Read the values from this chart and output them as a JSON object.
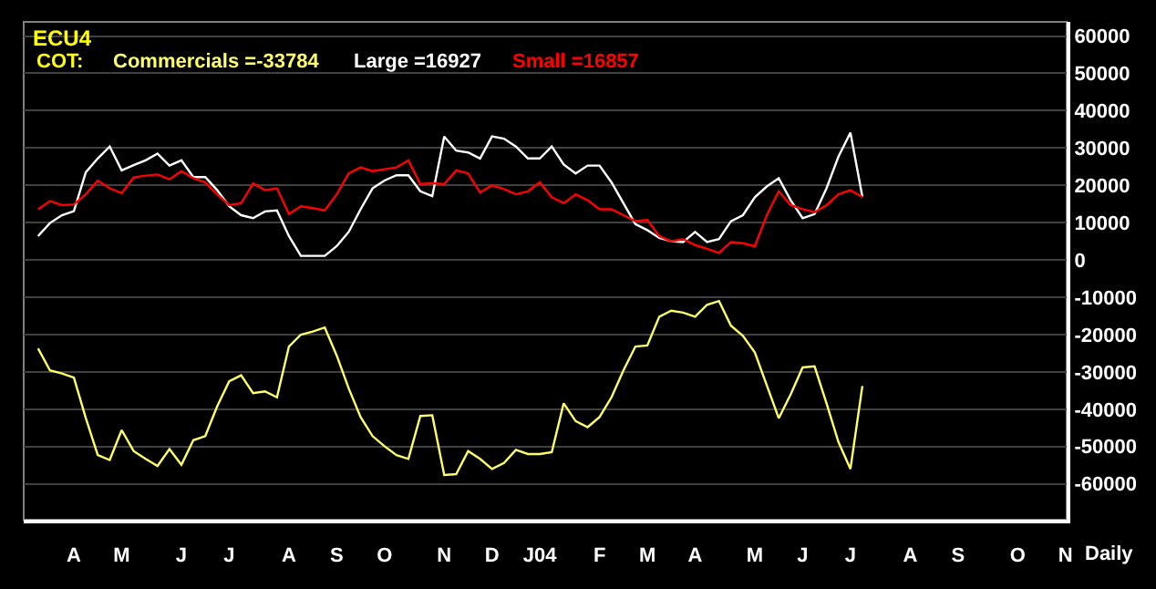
{
  "chart_data": {
    "type": "line",
    "title": "ECU4",
    "subtitle": "COT:",
    "categories": [
      null,
      null,
      null,
      "A",
      null,
      null,
      null,
      "M",
      null,
      null,
      null,
      null,
      "J",
      null,
      null,
      null,
      "J",
      null,
      null,
      null,
      null,
      "A",
      null,
      null,
      null,
      "S",
      null,
      null,
      null,
      "O",
      null,
      null,
      null,
      null,
      "N",
      null,
      null,
      null,
      "D",
      null,
      null,
      null,
      "J04",
      null,
      null,
      null,
      null,
      "F",
      null,
      null,
      null,
      "M",
      null,
      null,
      null,
      "A",
      null,
      null,
      null,
      null,
      "M",
      null,
      null,
      null,
      "J",
      null,
      null,
      null,
      "J",
      null,
      null,
      null,
      null,
      "A",
      null,
      null,
      null,
      "S",
      null,
      null,
      null,
      null,
      "O",
      null,
      null,
      null,
      "N"
    ],
    "series": [
      {
        "name": "Commercials =-33784",
        "color": "#ffff66",
        "values": [
          -23700,
          -29600,
          -30400,
          -31500,
          -42400,
          -52300,
          -53600,
          -45600,
          -51200,
          -53300,
          -55200,
          -50700,
          -54900,
          -48300,
          -47200,
          -39200,
          -32500,
          -30900,
          -35700,
          -35200,
          -36800,
          -23200,
          -20000,
          -19200,
          -18100,
          -25600,
          -34400,
          -42100,
          -47200,
          -49900,
          -52300,
          -53300,
          -41800,
          -41600,
          -57600,
          -57400,
          -51200,
          -53300,
          -56000,
          -54400,
          -50900,
          -52000,
          -52000,
          -51500,
          -38400,
          -43200,
          -44800,
          -42100,
          -36800,
          -29600,
          -23200,
          -22900,
          -15200,
          -13600,
          -14100,
          -15200,
          -12000,
          -11000,
          -17600,
          -20300,
          -24800,
          -33600,
          -42400,
          -36000,
          -28800,
          -28500,
          -38400,
          -48800,
          -56000,
          -33784,
          null,
          null,
          null,
          null,
          null,
          null,
          null,
          null,
          null,
          null,
          null,
          null,
          null,
          null,
          null,
          null,
          null
        ]
      },
      {
        "name": "Large =16927",
        "color": "#ffffff",
        "values": [
          6400,
          9900,
          12000,
          13100,
          23500,
          27200,
          30400,
          24000,
          25400,
          26700,
          28500,
          25300,
          26700,
          22200,
          22200,
          18700,
          14400,
          12000,
          11200,
          13000,
          13300,
          6400,
          1100,
          1100,
          1100,
          3700,
          7500,
          13600,
          19200,
          21300,
          22700,
          22700,
          18400,
          17100,
          33100,
          29300,
          28800,
          27200,
          33100,
          32500,
          30400,
          27200,
          27200,
          30400,
          25600,
          23200,
          25300,
          25300,
          20800,
          15200,
          9600,
          8000,
          5900,
          5000,
          4800,
          7500,
          4800,
          5600,
          10400,
          12000,
          16800,
          19700,
          21900,
          16000,
          11200,
          12300,
          19200,
          27700,
          34100,
          16927,
          null,
          null,
          null,
          null,
          null,
          null,
          null,
          null,
          null,
          null,
          null,
          null,
          null,
          null,
          null,
          null,
          null
        ]
      },
      {
        "name": "Small =16857",
        "color": "#ff0000",
        "values": [
          13600,
          15800,
          14700,
          14900,
          17600,
          21300,
          19200,
          17900,
          22100,
          22600,
          22900,
          21600,
          23800,
          21900,
          20800,
          17600,
          14700,
          15200,
          20500,
          18700,
          19200,
          12300,
          14400,
          13900,
          13300,
          17600,
          23200,
          24800,
          23800,
          24300,
          24800,
          26700,
          20300,
          20600,
          20300,
          24000,
          23200,
          18100,
          20000,
          19000,
          17600,
          18400,
          20800,
          16800,
          15200,
          17600,
          16000,
          13600,
          13600,
          12000,
          10400,
          10700,
          6400,
          5000,
          5600,
          4000,
          3000,
          1900,
          4800,
          4500,
          3700,
          12000,
          18400,
          14700,
          13600,
          12800,
          14700,
          17600,
          18700,
          16857,
          null,
          null,
          null,
          null,
          null,
          null,
          null,
          null,
          null,
          null,
          null,
          null,
          null,
          null,
          null,
          null,
          null
        ]
      }
    ],
    "ylim": [
      -69600,
      63800
    ],
    "yticks": [
      -60000,
      -50000,
      -40000,
      -30000,
      -20000,
      -10000,
      0,
      10000,
      20000,
      30000,
      40000,
      50000,
      60000
    ],
    "grid": "y",
    "marker": "none",
    "line_style": "solid",
    "annotations": [
      "Daily"
    ]
  }
}
